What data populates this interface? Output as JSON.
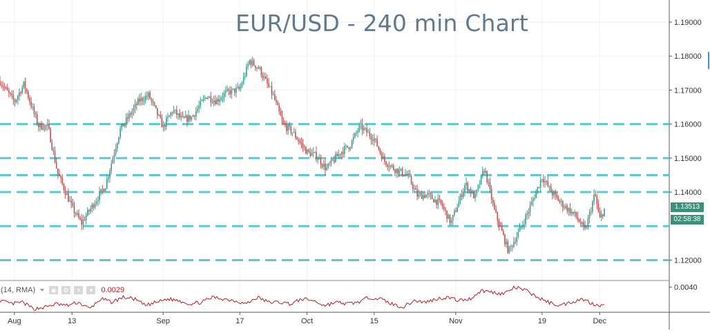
{
  "chart_data": {
    "type": "candlestick",
    "title": "EUR/USD - 240 min Chart",
    "y_axis": {
      "ticks": [
        "1.19000",
        "1.18000",
        "1.17000",
        "1.16000",
        "1.15000",
        "1.14000",
        "1.12000"
      ],
      "ylim": [
        1.114,
        1.1965
      ]
    },
    "x_axis": {
      "ticks": [
        "Aug",
        "13",
        "Sep",
        "17",
        "Oct",
        "15",
        "Nov",
        "19",
        "Dec"
      ],
      "range": [
        "2018-07-29",
        "2018-12-24"
      ]
    },
    "series": [
      {
        "type": "ohlc_close_path",
        "x": [
          "2018-07-29",
          "2018-08-01",
          "2018-08-03",
          "2018-08-06",
          "2018-08-08",
          "2018-08-10",
          "2018-08-13",
          "2018-08-15",
          "2018-08-16",
          "2018-08-20",
          "2018-08-23",
          "2018-08-27",
          "2018-08-29",
          "2018-09-01",
          "2018-09-03",
          "2018-09-05",
          "2018-09-07",
          "2018-09-10",
          "2018-09-12",
          "2018-09-14",
          "2018-09-17",
          "2018-09-19",
          "2018-09-21",
          "2018-09-24",
          "2018-09-26",
          "2018-09-28",
          "2018-10-01",
          "2018-10-03",
          "2018-10-05",
          "2018-10-08",
          "2018-10-10",
          "2018-10-12",
          "2018-10-15",
          "2018-10-17",
          "2018-10-19",
          "2018-10-22",
          "2018-10-24",
          "2018-10-26",
          "2018-10-29",
          "2018-10-31",
          "2018-11-03",
          "2018-11-05",
          "2018-11-07",
          "2018-11-09",
          "2018-11-12",
          "2018-11-14",
          "2018-11-16",
          "2018-11-19",
          "2018-11-21",
          "2018-11-23",
          "2018-11-26",
          "2018-11-28",
          "2018-11-30",
          "2018-12-01",
          "2018-12-02"
        ],
        "close": [
          1.1726,
          1.1665,
          1.1718,
          1.1595,
          1.1593,
          1.1456,
          1.1355,
          1.1308,
          1.1332,
          1.142,
          1.1582,
          1.1669,
          1.1685,
          1.1591,
          1.1641,
          1.1612,
          1.1621,
          1.1683,
          1.1668,
          1.1691,
          1.1703,
          1.1786,
          1.1764,
          1.1682,
          1.1599,
          1.1576,
          1.1518,
          1.1506,
          1.1468,
          1.1518,
          1.1538,
          1.1594,
          1.1557,
          1.1494,
          1.147,
          1.1449,
          1.1389,
          1.1392,
          1.1364,
          1.1309,
          1.1424,
          1.1384,
          1.147,
          1.1348,
          1.1226,
          1.1278,
          1.1339,
          1.1445,
          1.1399,
          1.1367,
          1.133,
          1.1286,
          1.1396,
          1.1318,
          1.1351
        ]
      }
    ],
    "horizontal_levels": [
      1.16,
      1.15,
      1.145,
      1.14,
      1.13,
      1.12
    ],
    "last_price": "1.13513",
    "countdown": "02:58:38",
    "indicator": {
      "label": "(14, RMA)",
      "value": "0.0029",
      "axis_tick": "0.0040",
      "values": [
        0.0032,
        0.003,
        0.0031,
        0.0027,
        0.0028,
        0.003,
        0.0029,
        0.0031,
        0.0027,
        0.0033,
        0.0031,
        0.0034,
        0.0033,
        0.0029,
        0.0031,
        0.0033,
        0.0032,
        0.003,
        0.0031,
        0.0034,
        0.0033,
        0.0032,
        0.003,
        0.0034,
        0.0031,
        0.0031,
        0.003,
        0.0033,
        0.0032,
        0.0029,
        0.0031,
        0.003,
        0.0031,
        0.0034,
        0.0033,
        0.003,
        0.0028,
        0.0032,
        0.0031,
        0.0033,
        0.0034,
        0.0032,
        0.0033,
        0.0038,
        0.0037,
        0.0036,
        0.004,
        0.0038,
        0.0034,
        0.0031,
        0.0029,
        0.0031,
        0.0033,
        0.003,
        0.0029
      ],
      "ylim": [
        0.0025,
        0.0044
      ]
    },
    "colors": {
      "level_line": "#5bc8d8",
      "up_candle": "#3a9a8c",
      "down_candle": "#c0504d",
      "indicator_line": "#b71c1c",
      "price_tag": "#3d8f7a",
      "title": "#5f7a8e"
    },
    "grid": true
  }
}
